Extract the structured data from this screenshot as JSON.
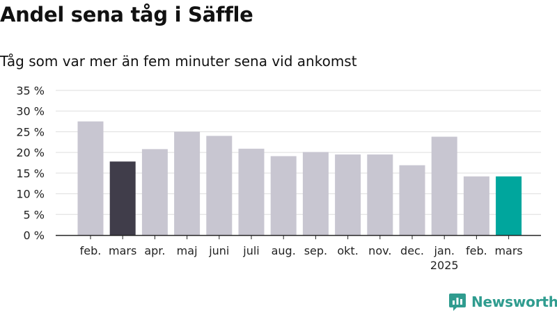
{
  "title": "Andel sena tåg i Säffle",
  "subtitle": "Tåg som var mer än fem minuter sena vid ankomst",
  "brand": {
    "name": "Newsworthy",
    "color": "#2f9c8f",
    "icon": "newsworthy-logo-icon"
  },
  "colors": {
    "default_bar": "#c8c6d1",
    "highlight_prev": "#403d4a",
    "highlight_current": "#00a69d",
    "grid": "#dddddd",
    "axis": "#222222"
  },
  "chart_data": {
    "type": "bar",
    "ylim": [
      0,
      35
    ],
    "yticks": [
      "35 %",
      "30 %",
      "25 %",
      "20 %",
      "15 %",
      "10 %",
      "5 %",
      "0 %"
    ],
    "ytick_values": [
      35,
      30,
      25,
      20,
      15,
      10,
      5,
      0
    ],
    "grid": true,
    "categories": [
      {
        "label": "feb.",
        "sub": ""
      },
      {
        "label": "mars",
        "sub": ""
      },
      {
        "label": "apr.",
        "sub": ""
      },
      {
        "label": "maj",
        "sub": ""
      },
      {
        "label": "juni",
        "sub": ""
      },
      {
        "label": "juli",
        "sub": ""
      },
      {
        "label": "aug.",
        "sub": ""
      },
      {
        "label": "sep.",
        "sub": ""
      },
      {
        "label": "okt.",
        "sub": ""
      },
      {
        "label": "nov.",
        "sub": ""
      },
      {
        "label": "dec.",
        "sub": ""
      },
      {
        "label": "jan.",
        "sub": "2025"
      },
      {
        "label": "feb.",
        "sub": ""
      },
      {
        "label": "mars",
        "sub": ""
      }
    ],
    "values": [
      27.5,
      17.8,
      20.8,
      25.0,
      24.0,
      20.9,
      19.1,
      20.1,
      19.5,
      19.5,
      16.9,
      23.8,
      14.2,
      14.2
    ],
    "highlight": [
      "",
      "prev",
      "",
      "",
      "",
      "",
      "",
      "",
      "",
      "",
      "",
      "",
      "",
      "current"
    ]
  }
}
